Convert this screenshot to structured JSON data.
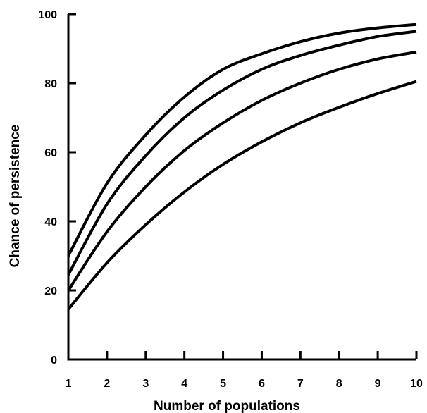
{
  "chart_data": {
    "type": "line",
    "title": "",
    "xlabel": "Number of populations",
    "ylabel": "Chance of persistence",
    "xlim": [
      1,
      10
    ],
    "ylim": [
      0,
      100
    ],
    "x_ticks": [
      "1",
      "2",
      "3",
      "4",
      "5",
      "6",
      "7",
      "8",
      "9",
      "10"
    ],
    "y_ticks": [
      "0",
      "20",
      "40",
      "60",
      "80",
      "100"
    ],
    "grid": false,
    "legend": "none",
    "line_color": "#000000",
    "x": [
      1,
      2,
      3,
      4,
      5,
      6,
      7,
      8,
      9,
      10
    ],
    "series": [
      {
        "values": [
          30,
          51,
          65,
          76,
          84,
          88.5,
          92,
          94.5,
          96,
          97
        ]
      },
      {
        "values": [
          24.5,
          45,
          59,
          70,
          78,
          84,
          88,
          91,
          93.5,
          95
        ]
      },
      {
        "values": [
          20,
          37,
          50,
          60.5,
          68.5,
          75,
          80,
          84,
          87,
          89
        ]
      },
      {
        "values": [
          14.5,
          28,
          39,
          48.5,
          56.5,
          63,
          68.5,
          73,
          77,
          80.5
        ]
      }
    ]
  }
}
